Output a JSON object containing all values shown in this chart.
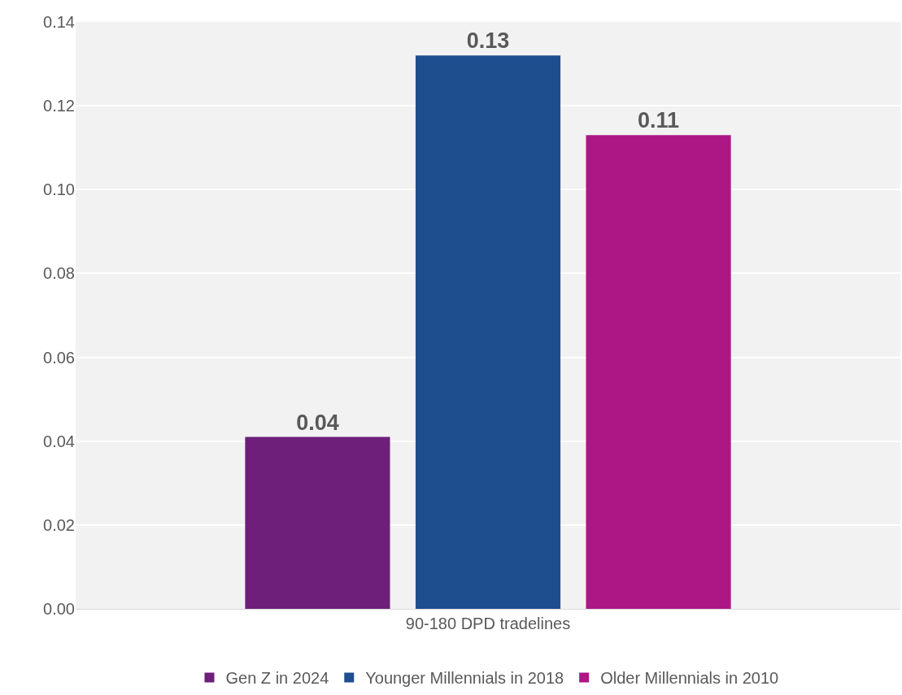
{
  "chart_data": {
    "type": "bar",
    "categories": [
      "90-180 DPD tradelines"
    ],
    "series": [
      {
        "name": "Gen Z in 2024",
        "color": "#6d1f7a",
        "values": [
          0.041
        ],
        "value_labels": [
          "0.04"
        ]
      },
      {
        "name": "Younger Millennials in 2018",
        "color": "#1f4e8f",
        "values": [
          0.132
        ],
        "value_labels": [
          "0.13"
        ]
      },
      {
        "name": "Older Millennials in 2010",
        "color": "#ad1685",
        "values": [
          0.113
        ],
        "value_labels": [
          "0.11"
        ]
      }
    ],
    "ylim": [
      0,
      0.14
    ],
    "yticks": [
      {
        "value": 0,
        "label": "0.00"
      },
      {
        "value": 0.02,
        "label": "0.02"
      },
      {
        "value": 0.04,
        "label": "0.04"
      },
      {
        "value": 0.06,
        "label": "0.06"
      },
      {
        "value": 0.08,
        "label": "0.08"
      },
      {
        "value": 0.1,
        "label": "0.10"
      },
      {
        "value": 0.12,
        "label": "0.12"
      },
      {
        "value": 0.14,
        "label": "0.14"
      }
    ],
    "grid": "y",
    "legend": "bottom"
  }
}
